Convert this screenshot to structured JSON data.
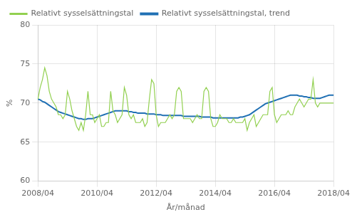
{
  "chart_data": {
    "type": "line",
    "xlabel": "År/månad",
    "ylabel": "%",
    "categories": [
      "2008/04",
      null,
      null,
      null,
      null,
      null,
      null,
      null,
      null,
      null,
      null,
      null,
      null,
      null,
      null,
      null,
      null,
      null,
      null,
      null,
      null,
      null,
      null,
      null,
      null,
      null,
      "2010/04",
      null,
      null,
      null,
      null,
      null,
      null,
      null,
      null,
      null,
      null,
      null,
      null,
      null,
      null,
      null,
      null,
      null,
      null,
      null,
      null,
      null,
      null,
      null,
      null,
      null,
      "2012/04",
      null,
      null,
      null,
      null,
      null,
      null,
      null,
      null,
      null,
      null,
      null,
      null,
      null,
      null,
      null,
      null,
      null,
      null,
      null,
      null,
      null,
      null,
      null,
      null,
      null,
      "2014/04",
      null,
      null,
      null,
      null,
      null,
      null,
      null,
      null,
      null,
      null,
      null,
      null,
      null,
      null,
      null,
      null,
      null,
      null,
      null,
      null,
      null,
      null,
      null,
      null,
      null,
      "2016/04",
      null,
      null,
      null,
      null,
      null,
      null,
      null,
      null,
      null,
      null,
      null,
      null,
      null,
      null,
      null,
      null,
      null,
      null,
      null,
      null,
      null,
      null,
      null,
      null,
      null,
      "2018/04"
    ],
    "series": [
      {
        "name": "Relativt sysselsättningstal",
        "color": "#92d050",
        "values": [
          70.5,
          72.0,
          73.0,
          74.5,
          73.5,
          71.5,
          70.5,
          70.0,
          69.5,
          68.5,
          68.5,
          68.0,
          68.5,
          71.5,
          70.5,
          69.0,
          68.0,
          67.0,
          66.5,
          67.5,
          66.5,
          68.5,
          71.5,
          68.5,
          68.5,
          67.5,
          68.0,
          68.5,
          67.0,
          67.0,
          67.5,
          67.5,
          71.5,
          69.0,
          68.5,
          67.5,
          68.0,
          68.5,
          72.0,
          71.0,
          68.5,
          68.0,
          68.5,
          67.5,
          67.5,
          67.5,
          68.0,
          67.0,
          67.5,
          70.5,
          73.0,
          72.5,
          68.5,
          67.0,
          67.5,
          67.5,
          67.5,
          68.0,
          68.5,
          68.0,
          68.5,
          71.5,
          72.0,
          71.5,
          68.0,
          68.0,
          68.0,
          68.0,
          67.5,
          68.0,
          68.5,
          68.0,
          68.0,
          71.5,
          72.0,
          71.5,
          68.0,
          67.0,
          67.0,
          67.5,
          68.5,
          68.0,
          68.0,
          68.0,
          67.5,
          67.5,
          68.0,
          67.5,
          67.5,
          67.5,
          67.5,
          68.0,
          66.5,
          67.5,
          68.0,
          68.5,
          67.0,
          67.5,
          68.0,
          68.5,
          68.5,
          68.5,
          71.5,
          72.0,
          68.5,
          67.5,
          68.0,
          68.5,
          68.5,
          68.5,
          69.0,
          68.5,
          68.5,
          69.5,
          70.0,
          70.5,
          70.0,
          69.5,
          70.0,
          70.5,
          70.5,
          73.0,
          70.0,
          69.5,
          70.0,
          70.0,
          70.0,
          70.0,
          70.0,
          70.0,
          70.0
        ]
      },
      {
        "name": "Relativt sysselsättningstal, trend",
        "color": "#2070b4",
        "values": [
          70.5,
          70.4,
          70.2,
          70.1,
          69.9,
          69.7,
          69.5,
          69.3,
          69.1,
          68.9,
          68.8,
          68.7,
          68.6,
          68.5,
          68.4,
          68.3,
          68.2,
          68.1,
          68.0,
          68.0,
          67.9,
          67.9,
          68.0,
          68.0,
          68.0,
          68.1,
          68.2,
          68.3,
          68.4,
          68.5,
          68.6,
          68.7,
          68.8,
          68.9,
          69.0,
          69.0,
          69.0,
          69.0,
          69.0,
          69.0,
          68.9,
          68.9,
          68.8,
          68.8,
          68.7,
          68.7,
          68.7,
          68.7,
          68.6,
          68.6,
          68.6,
          68.6,
          68.5,
          68.5,
          68.5,
          68.4,
          68.4,
          68.4,
          68.4,
          68.4,
          68.4,
          68.4,
          68.4,
          68.4,
          68.3,
          68.3,
          68.3,
          68.3,
          68.3,
          68.3,
          68.3,
          68.3,
          68.2,
          68.2,
          68.2,
          68.2,
          68.2,
          68.1,
          68.1,
          68.1,
          68.1,
          68.1,
          68.1,
          68.1,
          68.1,
          68.1,
          68.1,
          68.1,
          68.1,
          68.2,
          68.2,
          68.3,
          68.4,
          68.5,
          68.7,
          68.9,
          69.1,
          69.3,
          69.5,
          69.7,
          69.9,
          70.0,
          70.1,
          70.2,
          70.3,
          70.4,
          70.5,
          70.6,
          70.7,
          70.8,
          70.9,
          71.0,
          71.0,
          71.0,
          71.0,
          70.9,
          70.9,
          70.8,
          70.8,
          70.7,
          70.7,
          70.6,
          70.6,
          70.6,
          70.6,
          70.7,
          70.8,
          70.9,
          71.0,
          71.0,
          71.0
        ]
      }
    ],
    "ylim": [
      60,
      80
    ],
    "yticks": [
      60,
      65,
      70,
      75,
      80
    ],
    "grid": true,
    "legend": "top"
  }
}
